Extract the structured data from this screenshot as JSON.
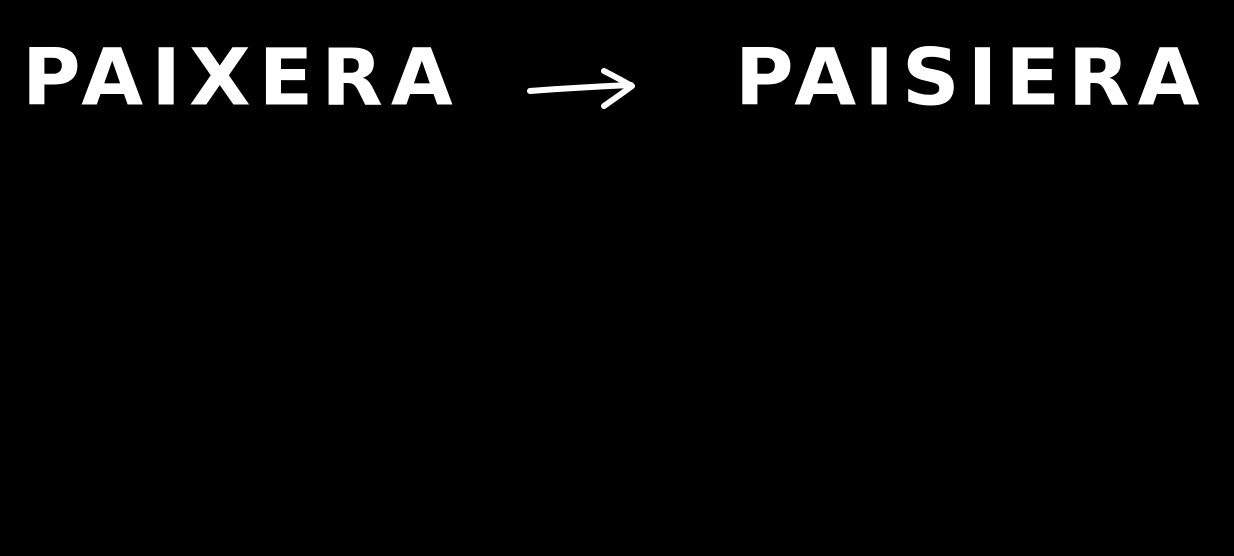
{
  "handwriting": {
    "source_word": "PAIXERA",
    "target_word": "PAISIERA",
    "arrow_icon": "right-arrow-icon",
    "ink_color": "#ffffff",
    "background_color": "#000000"
  }
}
